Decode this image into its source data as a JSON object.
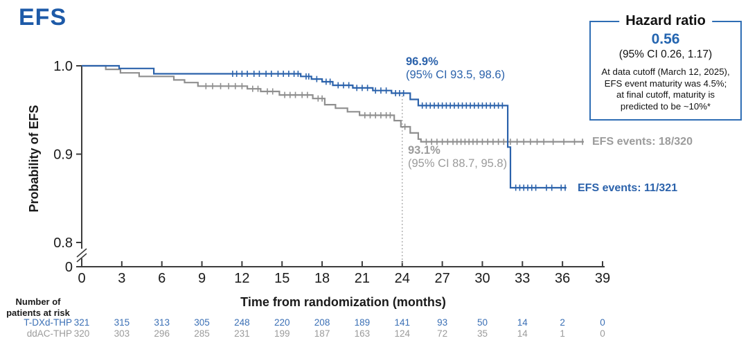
{
  "title": "EFS",
  "colors": {
    "title_blue": "#1d5aa8",
    "curve_blue": "#2b62ab",
    "curve_gray": "#8f8f8f",
    "text_gray": "#9b9b9b",
    "table_blue": "#3a6fb5",
    "box_border_blue": "#2e6db4",
    "axis": "#3c3c3c"
  },
  "hazard_box": {
    "title": "Hazard ratio",
    "value": "0.56",
    "ci": "(95% CI 0.26, 1.17)",
    "note_lines": [
      "At data cutoff (March 12, 2025),",
      "EFS event maturity was 4.5%;",
      "at final cutoff, maturity is",
      "predicted to be ~10%*"
    ]
  },
  "axes": {
    "y_label": "Probability of EFS",
    "x_label": "Time from randomization (months)"
  },
  "annotations": {
    "tdxd_pct": "96.9%",
    "tdxd_ci": "(95% CI 93.5, 98.6)",
    "ddac_pct": "93.1%",
    "ddac_ci": "(95% CI 88.7, 95.8)",
    "tdxd_events": "EFS events: 11/321",
    "ddac_events": "EFS events: 18/320"
  },
  "risk_header_lines": [
    "Number of",
    "patients at risk"
  ],
  "chart_data": {
    "type": "line",
    "subtype": "kaplan-meier-step",
    "title": "EFS",
    "xlabel": "Time from randomization (months)",
    "ylabel": "Probability of EFS",
    "x_ticks": [
      0,
      3,
      6,
      9,
      12,
      15,
      18,
      21,
      24,
      27,
      30,
      33,
      36,
      39
    ],
    "y_ticks": [
      {
        "label": "1.0",
        "value": 1.0
      },
      {
        "label": "0.9",
        "value": 0.9
      },
      {
        "label": "0.8",
        "value": 0.8
      },
      {
        "label": "0",
        "value": null
      }
    ],
    "ylim_visible": [
      0.8,
      1.0
    ],
    "axis_break_above_zero": true,
    "grid": false,
    "reference_line_x": 24,
    "series": [
      {
        "name": "ddAC-THP",
        "color": "#8f8f8f",
        "events_label": "EFS events: 18/320",
        "value_at_24_months": 0.931,
        "ci_at_24_months": [
          88.7,
          95.8
        ],
        "steps": [
          [
            0,
            1.0
          ],
          [
            1.8,
            0.996
          ],
          [
            2.9,
            0.992
          ],
          [
            4.3,
            0.988
          ],
          [
            6.9,
            0.984
          ],
          [
            7.7,
            0.981
          ],
          [
            8.7,
            0.977
          ],
          [
            12.4,
            0.974
          ],
          [
            13.4,
            0.971
          ],
          [
            14.8,
            0.967
          ],
          [
            17.3,
            0.963
          ],
          [
            18.2,
            0.956
          ],
          [
            19.0,
            0.952
          ],
          [
            19.9,
            0.948
          ],
          [
            20.8,
            0.944
          ],
          [
            23.4,
            0.938
          ],
          [
            23.9,
            0.931
          ],
          [
            24.6,
            0.924
          ],
          [
            25.2,
            0.917
          ],
          [
            25.4,
            0.914
          ]
        ],
        "end_month": 37.6,
        "censor_months": [
          9.3,
          9.8,
          10.4,
          11.0,
          11.5,
          12.0,
          12.8,
          13.2,
          13.9,
          14.3,
          15.2,
          15.6,
          16.0,
          16.5,
          16.9,
          17.7,
          18.0,
          21.2,
          21.6,
          22.0,
          22.4,
          22.8,
          23.1,
          24.2,
          25.8,
          26.2,
          26.6,
          27.0,
          27.4,
          27.8,
          28.1,
          28.4,
          28.7,
          29.0,
          29.3,
          29.6,
          30.0,
          30.4,
          30.8,
          31.2,
          31.6,
          32.1,
          32.6,
          33.1,
          33.6,
          34.1,
          34.6,
          35.3,
          36.1,
          36.9,
          37.5
        ]
      },
      {
        "name": "T-DXd-THP",
        "color": "#2b62ab",
        "events_label": "EFS events: 11/321",
        "value_at_24_months": 0.969,
        "ci_at_24_months": [
          93.5,
          98.6
        ],
        "steps": [
          [
            0,
            1.0
          ],
          [
            2.8,
            0.997
          ],
          [
            5.4,
            0.991
          ],
          [
            16.4,
            0.988
          ],
          [
            17.2,
            0.985
          ],
          [
            18.0,
            0.982
          ],
          [
            18.8,
            0.978
          ],
          [
            20.3,
            0.975
          ],
          [
            21.8,
            0.972
          ],
          [
            23.2,
            0.969
          ],
          [
            24.6,
            0.962
          ],
          [
            25.2,
            0.955
          ],
          [
            31.9,
            0.908
          ],
          [
            32.1,
            0.862
          ]
        ],
        "end_month": 36.3,
        "censor_months": [
          11.3,
          11.6,
          12.0,
          12.4,
          12.9,
          13.3,
          13.8,
          14.2,
          14.7,
          15.1,
          15.5,
          15.9,
          16.2,
          16.8,
          17.0,
          17.6,
          18.3,
          18.6,
          19.2,
          19.6,
          20.0,
          20.6,
          21.0,
          21.4,
          22.0,
          22.4,
          22.8,
          23.5,
          23.8,
          24.1,
          25.5,
          25.8,
          26.1,
          26.4,
          26.7,
          27.0,
          27.3,
          27.6,
          27.9,
          28.2,
          28.5,
          28.8,
          29.1,
          29.4,
          29.7,
          30.0,
          30.3,
          30.6,
          30.9,
          31.2,
          31.5,
          32.5,
          32.8,
          33.1,
          33.4,
          33.7,
          34.0,
          34.8,
          35.2,
          35.9,
          36.2
        ]
      }
    ],
    "risk_table": {
      "header": [
        "Number of",
        "patients at risk"
      ],
      "months": [
        0,
        3,
        6,
        9,
        12,
        15,
        18,
        21,
        24,
        27,
        30,
        33,
        36,
        39
      ],
      "rows": [
        {
          "label": "T-DXd-THP",
          "color": "#3a6fb5",
          "values": [
            321,
            315,
            313,
            305,
            248,
            220,
            208,
            189,
            141,
            93,
            50,
            14,
            2,
            0
          ]
        },
        {
          "label": "ddAC-THP",
          "color": "#9b9b9b",
          "values": [
            320,
            303,
            296,
            285,
            231,
            199,
            187,
            163,
            124,
            72,
            35,
            14,
            1,
            0
          ]
        }
      ]
    }
  }
}
